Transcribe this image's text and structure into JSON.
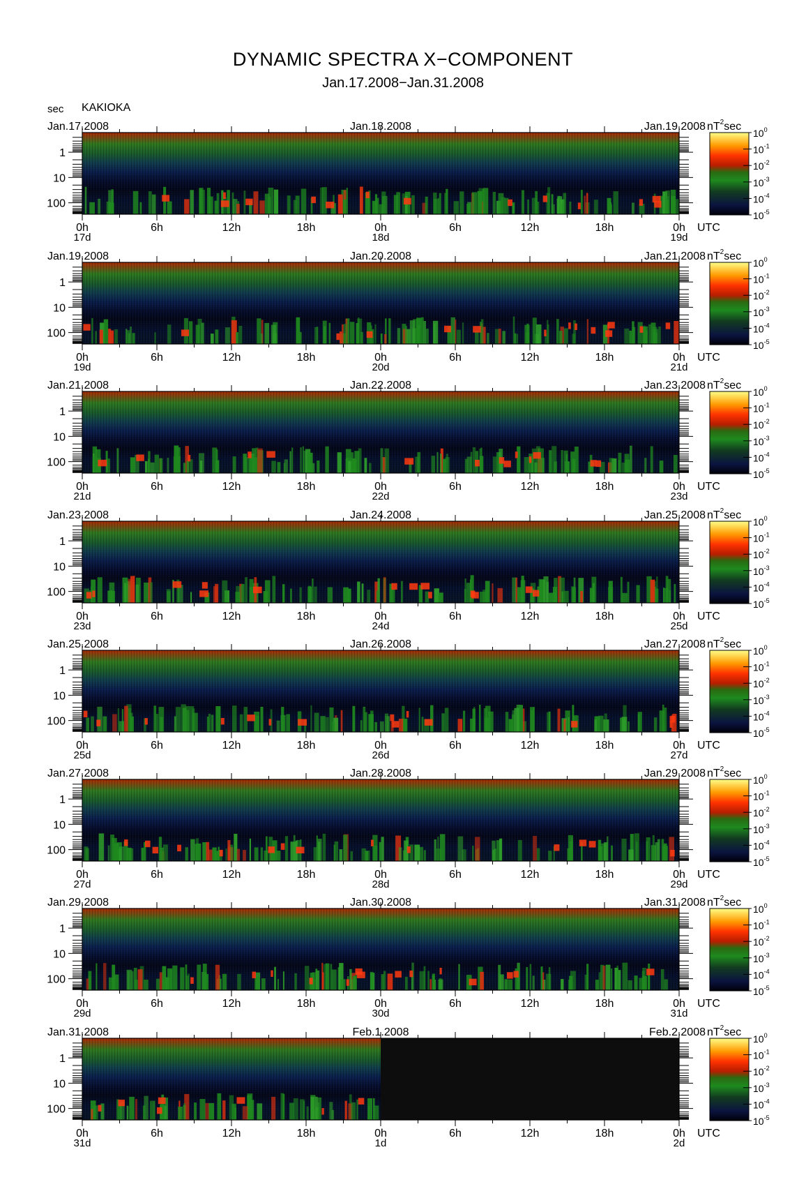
{
  "title": "DYNAMIC SPECTRA X−COMPONENT",
  "subtitle": "Jan.17.2008−Jan.31.2008",
  "y_unit": "sec",
  "station": "KAKIOKA",
  "colorbar_unit": "nT",
  "colorbar_unit_exp": "2",
  "colorbar_unit_suffix": "sec",
  "colorbar_ticks": [
    "10^0",
    "10^-1",
    "10^-2",
    "10^-3",
    "10^-4",
    "10^-5"
  ],
  "time_zone_label": "UTC",
  "chart_data": {
    "type": "heatmap",
    "title": "DYNAMIC SPECTRA X−COMPONENT",
    "subtitle": "Jan.17.2008−Jan.31.2008",
    "ylabel": "sec",
    "y_tick_labels": [
      "1",
      "10",
      "100"
    ],
    "y_scale": "log",
    "x_tick_labels": [
      "0h",
      "6h",
      "12h",
      "18h",
      "0h",
      "6h",
      "12h",
      "18h",
      "0h"
    ],
    "colorbar": {
      "unit": "nT^2 sec",
      "scale": "log",
      "range": [
        1e-05,
        1
      ],
      "colors": [
        "#000000",
        "#0a1040",
        "#1a3a1a",
        "#1e8a1e",
        "#cc2200",
        "#ff5500",
        "#ffcc00",
        "#ffff66"
      ]
    },
    "panels": [
      {
        "left_date": "Jan.17.2008",
        "mid_date": "Jan.18.2008",
        "right_date": "Jan.19.2008",
        "day_labels": [
          "17d",
          "18d",
          "19d"
        ],
        "has_data_fraction": 1.0
      },
      {
        "left_date": "Jan.19.2008",
        "mid_date": "Jan.20.2008",
        "right_date": "Jan.21.2008",
        "day_labels": [
          "19d",
          "20d",
          "21d"
        ],
        "has_data_fraction": 1.0
      },
      {
        "left_date": "Jan.21.2008",
        "mid_date": "Jan.22.2008",
        "right_date": "Jan.23.2008",
        "day_labels": [
          "21d",
          "22d",
          "23d"
        ],
        "has_data_fraction": 1.0
      },
      {
        "left_date": "Jan.23.2008",
        "mid_date": "Jan.24.2008",
        "right_date": "Jan.25.2008",
        "day_labels": [
          "23d",
          "24d",
          "25d"
        ],
        "has_data_fraction": 1.0
      },
      {
        "left_date": "Jan.25.2008",
        "mid_date": "Jan.26.2008",
        "right_date": "Jan.27.2008",
        "day_labels": [
          "25d",
          "26d",
          "27d"
        ],
        "has_data_fraction": 1.0
      },
      {
        "left_date": "Jan.27.2008",
        "mid_date": "Jan.28.2008",
        "right_date": "Jan.29.2008",
        "day_labels": [
          "27d",
          "28d",
          "29d"
        ],
        "has_data_fraction": 1.0
      },
      {
        "left_date": "Jan.29.2008",
        "mid_date": "Jan.30.2008",
        "right_date": "Jan.31.2008",
        "day_labels": [
          "29d",
          "30d",
          "31d"
        ],
        "has_data_fraction": 1.0
      },
      {
        "left_date": "Jan.31.2008",
        "mid_date": "Feb.1.2008",
        "right_date": "Feb.2.2008",
        "day_labels": [
          "31d",
          "1d",
          "2d"
        ],
        "has_data_fraction": 0.5
      }
    ]
  }
}
